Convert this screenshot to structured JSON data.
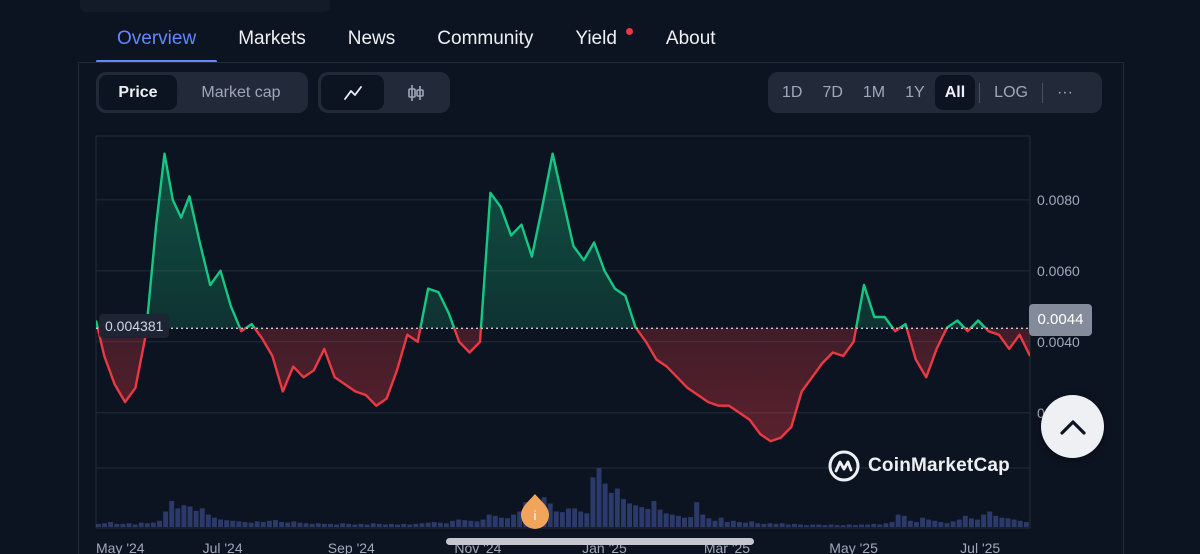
{
  "tabs": [
    {
      "label": "Overview",
      "active": true
    },
    {
      "label": "Markets"
    },
    {
      "label": "News"
    },
    {
      "label": "Community"
    },
    {
      "label": "Yield",
      "badge": true
    },
    {
      "label": "About"
    }
  ],
  "view_toggle": {
    "price": "Price",
    "market_cap": "Market cap"
  },
  "chart_type": {
    "line_icon": "line-chart-icon",
    "candle_icon": "candlestick-icon"
  },
  "ranges": [
    "1D",
    "7D",
    "1M",
    "1Y",
    "All"
  ],
  "active_range": "All",
  "log_label": "LOG",
  "more_label": "···",
  "brand": "CoinMarketCap",
  "colors": {
    "up": "#16c784",
    "down": "#ea3943",
    "accent": "#6188ff",
    "background": "#0d1421"
  },
  "chart_data": {
    "type": "area",
    "baseline": 0.004381,
    "baseline_label": "0.004381",
    "last_price_label": "0.0044",
    "ylim": [
      0.0005,
      0.0098
    ],
    "y_ticks": [
      0.002,
      0.004,
      0.006,
      0.008
    ],
    "y_tick_labels": [
      "0.0020",
      "0.0040",
      "0.0060",
      "0.0080"
    ],
    "x_tick_labels": [
      "May '24",
      "Jul '24",
      "Sep '24",
      "Nov '24",
      "Jan '25",
      "Mar '25",
      "May '25",
      "Jul '25"
    ],
    "x_tick_dates": [
      "2024-05-01",
      "2024-07-01",
      "2024-09-01",
      "2024-11-01",
      "2025-01-01",
      "2025-03-01",
      "2025-05-01",
      "2025-07-01"
    ],
    "series": [
      {
        "x": [
          "2024-05-01",
          "2024-05-05",
          "2024-05-10",
          "2024-05-15",
          "2024-05-20",
          "2024-05-25",
          "2024-05-30",
          "2024-06-03",
          "2024-06-07",
          "2024-06-11",
          "2024-06-15",
          "2024-06-20",
          "2024-06-25",
          "2024-06-30",
          "2024-07-05",
          "2024-07-10",
          "2024-07-15",
          "2024-07-20",
          "2024-07-25",
          "2024-07-30",
          "2024-08-04",
          "2024-08-09",
          "2024-08-14",
          "2024-08-19",
          "2024-08-24",
          "2024-08-29",
          "2024-09-03",
          "2024-09-08",
          "2024-09-13",
          "2024-09-18",
          "2024-09-23",
          "2024-09-28",
          "2024-10-03",
          "2024-10-08",
          "2024-10-13",
          "2024-10-18",
          "2024-10-23",
          "2024-10-28",
          "2024-11-02",
          "2024-11-07",
          "2024-11-12",
          "2024-11-17",
          "2024-11-22",
          "2024-11-27",
          "2024-12-02",
          "2024-12-07",
          "2024-12-12",
          "2024-12-17",
          "2024-12-22",
          "2024-12-27",
          "2025-01-01",
          "2025-01-06",
          "2025-01-11",
          "2025-01-16",
          "2025-01-21",
          "2025-01-26",
          "2025-01-31",
          "2025-02-05",
          "2025-02-10",
          "2025-02-15",
          "2025-02-20",
          "2025-02-25",
          "2025-03-02",
          "2025-03-07",
          "2025-03-12",
          "2025-03-17",
          "2025-03-22",
          "2025-03-27",
          "2025-04-01",
          "2025-04-06",
          "2025-04-11",
          "2025-04-16",
          "2025-04-21",
          "2025-04-26",
          "2025-05-01",
          "2025-05-06",
          "2025-05-11",
          "2025-05-16",
          "2025-05-21",
          "2025-05-26",
          "2025-05-31",
          "2025-06-05",
          "2025-06-10",
          "2025-06-15",
          "2025-06-20",
          "2025-06-25",
          "2025-06-30",
          "2025-07-05",
          "2025-07-10",
          "2025-07-15",
          "2025-07-20",
          "2025-07-25"
        ],
        "y": [
          0.0046,
          0.0036,
          0.0028,
          0.0023,
          0.0027,
          0.0042,
          0.0073,
          0.0093,
          0.008,
          0.0075,
          0.0081,
          0.0068,
          0.0056,
          0.006,
          0.005,
          0.0043,
          0.0045,
          0.0041,
          0.0036,
          0.0026,
          0.0033,
          0.003,
          0.0032,
          0.0038,
          0.003,
          0.0028,
          0.0026,
          0.0025,
          0.0022,
          0.0024,
          0.0032,
          0.0042,
          0.004,
          0.0055,
          0.0054,
          0.0048,
          0.004,
          0.0037,
          0.004,
          0.0082,
          0.0078,
          0.007,
          0.0073,
          0.0064,
          0.0078,
          0.0093,
          0.008,
          0.0067,
          0.0063,
          0.0068,
          0.006,
          0.0055,
          0.0053,
          0.0044,
          0.004,
          0.0035,
          0.0033,
          0.003,
          0.0027,
          0.0025,
          0.0023,
          0.0022,
          0.0022,
          0.002,
          0.0018,
          0.0014,
          0.0012,
          0.0013,
          0.0016,
          0.0026,
          0.003,
          0.0034,
          0.0037,
          0.0036,
          0.004,
          0.0056,
          0.0047,
          0.0047,
          0.0043,
          0.0045,
          0.0035,
          0.003,
          0.0038,
          0.0044,
          0.0046,
          0.0043,
          0.0046,
          0.0043,
          0.0042,
          0.0038,
          0.0042,
          0.0036
        ]
      }
    ],
    "volume": {
      "x_start": "2024-05-01",
      "x_end": "2025-07-25",
      "values": [
        0.05,
        0.06,
        0.08,
        0.05,
        0.05,
        0.06,
        0.04,
        0.07,
        0.06,
        0.07,
        0.1,
        0.25,
        0.42,
        0.3,
        0.35,
        0.33,
        0.26,
        0.3,
        0.2,
        0.15,
        0.12,
        0.11,
        0.1,
        0.09,
        0.08,
        0.07,
        0.09,
        0.08,
        0.1,
        0.11,
        0.08,
        0.07,
        0.09,
        0.07,
        0.06,
        0.05,
        0.06,
        0.05,
        0.05,
        0.04,
        0.06,
        0.05,
        0.04,
        0.05,
        0.04,
        0.06,
        0.05,
        0.04,
        0.05,
        0.04,
        0.05,
        0.04,
        0.05,
        0.06,
        0.07,
        0.08,
        0.07,
        0.06,
        0.1,
        0.12,
        0.11,
        0.1,
        0.09,
        0.12,
        0.2,
        0.18,
        0.15,
        0.14,
        0.2,
        0.25,
        0.4,
        0.32,
        0.36,
        0.48,
        0.38,
        0.25,
        0.24,
        0.3,
        0.3,
        0.25,
        0.22,
        0.8,
        0.95,
        0.7,
        0.55,
        0.62,
        0.45,
        0.38,
        0.35,
        0.32,
        0.29,
        0.42,
        0.28,
        0.22,
        0.2,
        0.18,
        0.15,
        0.16,
        0.4,
        0.2,
        0.14,
        0.1,
        0.15,
        0.08,
        0.1,
        0.08,
        0.07,
        0.09,
        0.06,
        0.05,
        0.06,
        0.05,
        0.06,
        0.04,
        0.05,
        0.04,
        0.03,
        0.04,
        0.04,
        0.03,
        0.04,
        0.03,
        0.03,
        0.04,
        0.03,
        0.04,
        0.04,
        0.05,
        0.04,
        0.06,
        0.08,
        0.2,
        0.18,
        0.1,
        0.08,
        0.15,
        0.12,
        0.1,
        0.08,
        0.06,
        0.09,
        0.12,
        0.18,
        0.14,
        0.12,
        0.2,
        0.25,
        0.18,
        0.15,
        0.14,
        0.12,
        0.1,
        0.08
      ]
    }
  }
}
